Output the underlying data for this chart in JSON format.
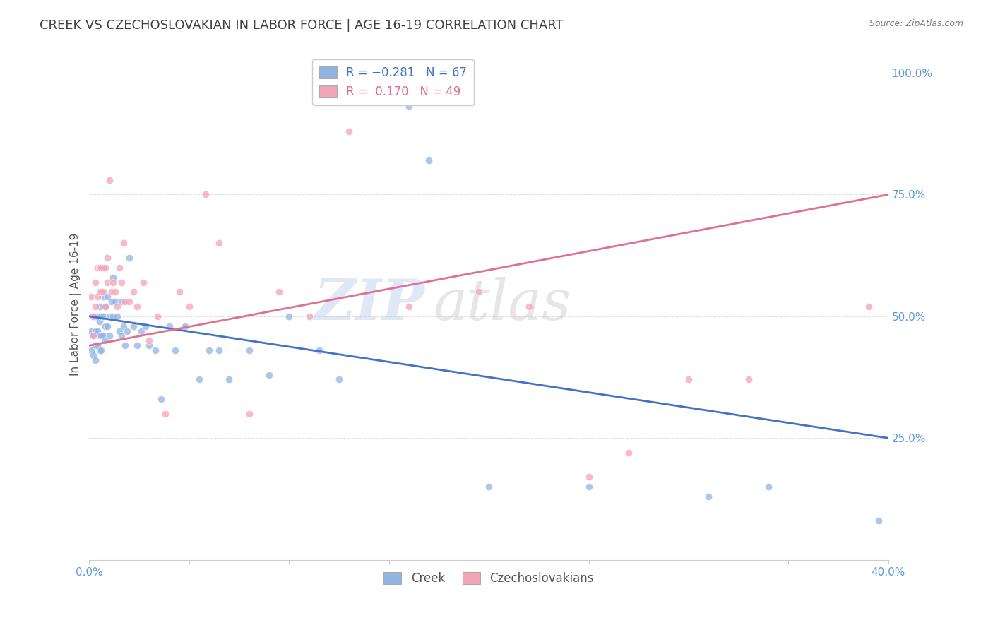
{
  "title": "CREEK VS CZECHOSLOVAKIAN IN LABOR FORCE | AGE 16-19 CORRELATION CHART",
  "source": "Source: ZipAtlas.com",
  "ylabel_label": "In Labor Force | Age 16-19",
  "creek_color": "#92b4e3",
  "czech_color": "#f2a5b8",
  "creek_line_color": "#4472c4",
  "czech_line_color": "#e07090",
  "watermark_zip": "ZIP",
  "watermark_atlas": "atlas",
  "creek_x": [
    0.001,
    0.001,
    0.002,
    0.002,
    0.002,
    0.003,
    0.003,
    0.003,
    0.003,
    0.004,
    0.004,
    0.004,
    0.005,
    0.005,
    0.005,
    0.005,
    0.006,
    0.006,
    0.006,
    0.007,
    0.007,
    0.007,
    0.008,
    0.008,
    0.008,
    0.009,
    0.009,
    0.01,
    0.01,
    0.011,
    0.012,
    0.012,
    0.013,
    0.014,
    0.015,
    0.016,
    0.016,
    0.017,
    0.018,
    0.019,
    0.02,
    0.022,
    0.024,
    0.026,
    0.028,
    0.03,
    0.033,
    0.036,
    0.04,
    0.043,
    0.048,
    0.055,
    0.06,
    0.065,
    0.07,
    0.08,
    0.09,
    0.1,
    0.115,
    0.125,
    0.16,
    0.17,
    0.2,
    0.25,
    0.31,
    0.34,
    0.395
  ],
  "creek_y": [
    0.47,
    0.43,
    0.5,
    0.46,
    0.42,
    0.5,
    0.47,
    0.44,
    0.41,
    0.5,
    0.47,
    0.44,
    0.52,
    0.49,
    0.46,
    0.43,
    0.5,
    0.46,
    0.43,
    0.54,
    0.5,
    0.46,
    0.52,
    0.48,
    0.45,
    0.54,
    0.48,
    0.5,
    0.46,
    0.53,
    0.58,
    0.5,
    0.53,
    0.5,
    0.47,
    0.53,
    0.46,
    0.48,
    0.44,
    0.47,
    0.62,
    0.48,
    0.44,
    0.47,
    0.48,
    0.44,
    0.43,
    0.33,
    0.48,
    0.43,
    0.48,
    0.37,
    0.43,
    0.43,
    0.37,
    0.43,
    0.38,
    0.5,
    0.43,
    0.37,
    0.93,
    0.82,
    0.15,
    0.15,
    0.13,
    0.15,
    0.08
  ],
  "czech_x": [
    0.001,
    0.002,
    0.002,
    0.003,
    0.003,
    0.004,
    0.004,
    0.005,
    0.005,
    0.006,
    0.006,
    0.007,
    0.007,
    0.008,
    0.008,
    0.009,
    0.009,
    0.01,
    0.011,
    0.012,
    0.013,
    0.014,
    0.015,
    0.016,
    0.017,
    0.018,
    0.02,
    0.022,
    0.024,
    0.027,
    0.03,
    0.034,
    0.038,
    0.045,
    0.05,
    0.058,
    0.065,
    0.08,
    0.095,
    0.11,
    0.13,
    0.16,
    0.195,
    0.22,
    0.25,
    0.27,
    0.3,
    0.33,
    0.39
  ],
  "czech_y": [
    0.54,
    0.5,
    0.46,
    0.57,
    0.52,
    0.6,
    0.54,
    0.6,
    0.55,
    0.6,
    0.55,
    0.6,
    0.55,
    0.6,
    0.52,
    0.62,
    0.57,
    0.78,
    0.55,
    0.57,
    0.55,
    0.52,
    0.6,
    0.57,
    0.65,
    0.53,
    0.53,
    0.55,
    0.52,
    0.57,
    0.45,
    0.5,
    0.3,
    0.55,
    0.52,
    0.75,
    0.65,
    0.3,
    0.55,
    0.5,
    0.88,
    0.52,
    0.55,
    0.52,
    0.17,
    0.22,
    0.37,
    0.37,
    0.52
  ],
  "creek_line_x0": 0.0,
  "creek_line_y0": 0.5,
  "creek_line_x1": 0.4,
  "creek_line_y1": 0.25,
  "czech_line_x0": 0.0,
  "czech_line_y0": 0.44,
  "czech_line_x1": 0.4,
  "czech_line_y1": 0.75,
  "xmin": 0.0,
  "xmax": 0.4,
  "ymin": 0.0,
  "ymax": 1.05,
  "yticks": [
    0.25,
    0.5,
    0.75,
    1.0
  ],
  "ytick_labels": [
    "25.0%",
    "50.0%",
    "75.0%",
    "100.0%"
  ],
  "xticks": [
    0.0,
    0.05,
    0.1,
    0.15,
    0.2,
    0.25,
    0.3,
    0.35,
    0.4
  ],
  "grid_color": "#e0e0e0",
  "background_color": "#ffffff",
  "title_color": "#404040",
  "axis_label_color": "#5b9bd5",
  "title_fontsize": 13,
  "source_text": "Source: ZipAtlas.com"
}
